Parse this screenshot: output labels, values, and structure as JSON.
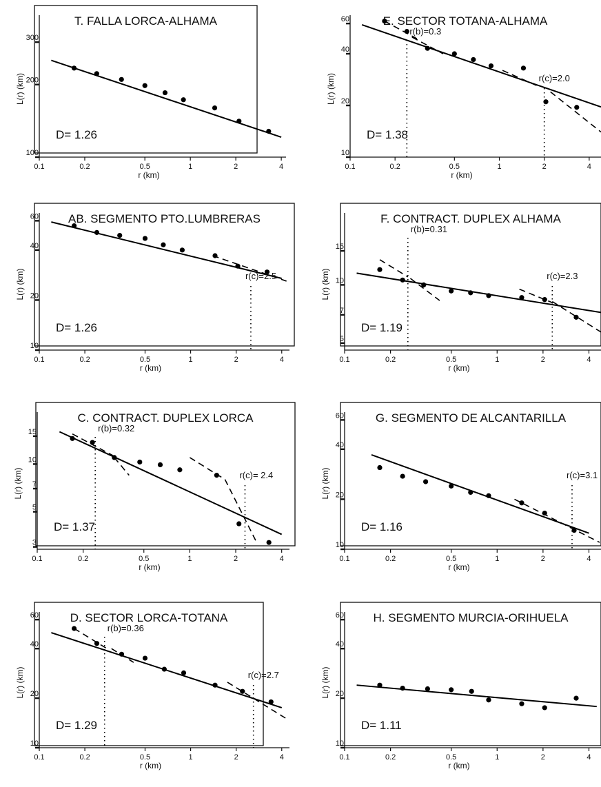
{
  "chart_data": [
    {
      "id": "A",
      "type": "scatter",
      "xscale": "log",
      "yscale": "log",
      "title": "T. FALLA LORCA-ALHAMA",
      "xlabel": "r (km)",
      "ylabel": "L(r) (km)",
      "xlim": [
        0.1,
        4.3
      ],
      "ylim": [
        100,
        420
      ],
      "xticks": [
        "0.1",
        "0.2",
        "0.5",
        "1",
        "2",
        "4"
      ],
      "yticks": [
        "100",
        "200",
        "300"
      ],
      "points": {
        "x": [
          0.17,
          0.24,
          0.35,
          0.5,
          0.68,
          0.9,
          1.45,
          2.1,
          3.3
        ],
        "y": [
          234,
          222,
          210,
          198,
          185,
          173,
          160,
          141,
          128
        ]
      },
      "fit": [
        [
          0.12,
          252
        ],
        [
          4.0,
          121
        ]
      ],
      "fractal_dimension": "D= 1.26",
      "annotations": []
    },
    {
      "id": "E",
      "type": "scatter",
      "xscale": "log",
      "yscale": "log",
      "title": "E. SECTOR TOTANA-ALHAMA",
      "xlabel": "r (km)",
      "ylabel": "L(r) (km)",
      "xlim": [
        0.1,
        4.8
      ],
      "ylim": [
        10,
        75
      ],
      "xticks": [
        "0.1",
        "0.2",
        "0.5",
        "1",
        "2",
        "4"
      ],
      "yticks": [
        "10",
        "20",
        "40",
        "60"
      ],
      "points": {
        "x": [
          0.17,
          0.24,
          0.33,
          0.5,
          0.67,
          0.88,
          1.45,
          2.05,
          3.3
        ],
        "y": [
          62,
          54,
          43,
          40,
          37,
          34,
          33,
          21,
          19.5
        ]
      },
      "fit": [
        [
          0.12,
          59
        ],
        [
          4.8,
          19.6
        ]
      ],
      "break_lines": [
        [
          [
            0.17,
            62
          ],
          [
            0.28,
            49
          ]
        ],
        [
          [
            0.26,
            50
          ],
          [
            0.42,
            40
          ]
        ],
        [
          [
            1.05,
            32
          ],
          [
            1.8,
            26
          ]
        ],
        [
          [
            2.2,
            24
          ],
          [
            4.8,
            14
          ]
        ]
      ],
      "fractal_dimension": "D= 1.38",
      "annotations": [
        {
          "text": "r(b)=0.3",
          "x": 0.24
        },
        {
          "text": "r(c)=2.0",
          "x": 2.0
        }
      ]
    },
    {
      "id": "AB",
      "type": "scatter",
      "xscale": "log",
      "yscale": "log",
      "title": "AB. SEGMENTO PTO.LUMBRERAS",
      "xlabel": "r (km)",
      "ylabel": "L(r) (km)",
      "xlim": [
        0.1,
        4.5
      ],
      "ylim": [
        10,
        75
      ],
      "xticks": [
        "0.1",
        "0.2",
        "0.5",
        "1",
        "2",
        "4"
      ],
      "yticks": [
        "10",
        "20",
        "40",
        "60"
      ],
      "points": {
        "x": [
          0.17,
          0.24,
          0.34,
          0.5,
          0.66,
          0.88,
          1.45,
          2.05,
          3.2
        ],
        "y": [
          56,
          51,
          49,
          47,
          43,
          40,
          37,
          32,
          29.5
        ]
      },
      "fit": [
        [
          0.12,
          59
        ],
        [
          4.0,
          27
        ]
      ],
      "break_lines": [
        [
          [
            1.4,
            37
          ],
          [
            4.3,
            26
          ]
        ]
      ],
      "fractal_dimension": "D= 1.26",
      "annotations": [
        {
          "text": "r(c)=2.5",
          "x": 2.5
        }
      ]
    },
    {
      "id": "F",
      "type": "scatter",
      "xscale": "log",
      "yscale": "log",
      "title": "F. CONTRACT. DUPLEX ALHAMA",
      "xlabel": "r (km)",
      "ylabel": "L(r) (km)",
      "xlim": [
        0.1,
        4.8
      ],
      "ylim": [
        4.6,
        26
      ],
      "xticks": [
        "0.1",
        "0.2",
        "0.5",
        "1",
        "2",
        "4"
      ],
      "yticks": [
        "5",
        "7",
        "10",
        "15"
      ],
      "points": {
        "x": [
          0.17,
          0.24,
          0.33,
          0.5,
          0.67,
          0.88,
          1.45,
          2.05,
          3.3
        ],
        "y": [
          12,
          10.6,
          10,
          9.3,
          9.1,
          8.8,
          8.6,
          8.4,
          6.8
        ]
      },
      "fit": [
        [
          0.12,
          11.5
        ],
        [
          4.8,
          7.2
        ]
      ],
      "break_lines": [
        [
          [
            0.17,
            13.5
          ],
          [
            0.26,
            11
          ]
        ],
        [
          [
            0.27,
            10.8
          ],
          [
            0.42,
            8.3
          ]
        ],
        [
          [
            1.4,
            9.5
          ],
          [
            2.3,
            8.1
          ]
        ],
        [
          [
            2.3,
            8.2
          ],
          [
            4.8,
            5.7
          ]
        ]
      ],
      "fractal_dimension": "D= 1.19",
      "annotations": [
        {
          "text": "r(b)=0.31",
          "x": 0.26
        },
        {
          "text": "r(c)=2.3",
          "x": 2.3
        }
      ]
    },
    {
      "id": "C",
      "type": "scatter",
      "xscale": "log",
      "yscale": "log",
      "title": "C. CONTRACT. DUPLEX LORCA",
      "xlabel": "r (km)",
      "ylabel": "L(r) (km)",
      "xlim": [
        0.1,
        4.5
      ],
      "ylim": [
        2.9,
        24
      ],
      "xticks": [
        "0.1",
        "0.2",
        "0.5",
        "1",
        "2",
        "4"
      ],
      "yticks": [
        "3",
        "5",
        "7",
        "10",
        "15"
      ],
      "points": {
        "x": [
          0.17,
          0.23,
          0.32,
          0.47,
          0.64,
          0.86,
          1.5,
          2.1,
          3.3
        ],
        "y": [
          14.5,
          13.7,
          11,
          10.3,
          9.9,
          9.2,
          8.5,
          4.2,
          3.2
        ]
      },
      "fit": [
        [
          0.14,
          16
        ],
        [
          4.0,
          3.6
        ]
      ],
      "break_lines": [
        [
          [
            0.17,
            15.5
          ],
          [
            0.32,
            11.2
          ]
        ],
        [
          [
            0.32,
            11
          ],
          [
            0.4,
            8.5
          ]
        ],
        [
          [
            1.0,
            11
          ],
          [
            1.7,
            8
          ]
        ],
        [
          [
            1.7,
            8
          ],
          [
            2.7,
            3.3
          ]
        ]
      ],
      "fractal_dimension": "D= 1.37",
      "annotations": [
        {
          "text": "r(b)=0.32",
          "x": 0.24
        },
        {
          "text": "r(c)= 2.4",
          "x": 2.3
        }
      ]
    },
    {
      "id": "G",
      "type": "scatter",
      "xscale": "log",
      "yscale": "log",
      "title": "G. SEGMENTO DE ALCANTARILLA",
      "xlabel": "r (km)",
      "ylabel": "L(r) (km)",
      "xlim": [
        0.1,
        4.8
      ],
      "ylim": [
        10,
        75
      ],
      "xticks": [
        "0.1",
        "0.2",
        "0.5",
        "1",
        "2",
        "4"
      ],
      "yticks": [
        "10",
        "20",
        "40",
        "60"
      ],
      "points": {
        "x": [
          0.17,
          0.24,
          0.34,
          0.5,
          0.67,
          0.88,
          1.45,
          2.05,
          3.2
        ],
        "y": [
          31,
          27.5,
          25.5,
          24,
          22,
          21,
          19,
          16.5,
          13
        ]
      },
      "fit": [
        [
          0.15,
          37
        ],
        [
          4.0,
          12.5
        ]
      ],
      "break_lines": [
        [
          [
            1.3,
            20
          ],
          [
            4.7,
            11
          ]
        ]
      ],
      "fractal_dimension": "D= 1.16",
      "annotations": [
        {
          "text": "r(c)=3.1",
          "x": 3.1
        }
      ]
    },
    {
      "id": "D",
      "type": "scatter",
      "xscale": "log",
      "yscale": "log",
      "title": "D. SECTOR LORCA-TOTANA",
      "xlabel": "r (km)",
      "ylabel": "L(r) (km)",
      "xlim": [
        0.1,
        4.5
      ],
      "ylim": [
        10,
        75
      ],
      "xticks": [
        "0.1",
        "0.2",
        "0.5",
        "1",
        "2",
        "4"
      ],
      "yticks": [
        "10",
        "20",
        "40",
        "60"
      ],
      "points": {
        "x": [
          0.17,
          0.24,
          0.35,
          0.5,
          0.67,
          0.9,
          1.45,
          2.2,
          3.4
        ],
        "y": [
          53,
          43,
          37,
          35,
          30,
          28.5,
          24,
          22,
          19
        ]
      },
      "fit": [
        [
          0.12,
          50
        ],
        [
          4.0,
          17.5
        ]
      ],
      "break_lines": [
        [
          [
            0.17,
            53
          ],
          [
            0.28,
            40
          ]
        ],
        [
          [
            0.3,
            40
          ],
          [
            0.42,
            33
          ]
        ],
        [
          [
            1.75,
            25
          ],
          [
            4.3,
            15
          ]
        ]
      ],
      "fractal_dimension": "D= 1.29",
      "annotations": [
        {
          "text": "r(b)=0.36",
          "x": 0.27
        },
        {
          "text": "r(c)=2.7",
          "x": 2.6
        }
      ]
    },
    {
      "id": "H",
      "type": "scatter",
      "xscale": "log",
      "yscale": "log",
      "title": "H. SEGMENTO MURCIA-ORIHUELA",
      "xlabel": "r (km)",
      "ylabel": "L(r) (km)",
      "xlim": [
        0.1,
        4.8
      ],
      "ylim": [
        10,
        75
      ],
      "xticks": [
        "0.1",
        "0.2",
        "0.5",
        "1",
        "2",
        "4"
      ],
      "yticks": [
        "10",
        "20",
        "40",
        "60"
      ],
      "points": {
        "x": [
          0.17,
          0.24,
          0.35,
          0.5,
          0.68,
          0.88,
          1.45,
          2.05,
          3.3
        ],
        "y": [
          24,
          23,
          22.8,
          22.5,
          22,
          19.5,
          18.5,
          17.5,
          20
        ]
      },
      "fit": [
        [
          0.12,
          24
        ],
        [
          4.5,
          17.8
        ]
      ],
      "fractal_dimension": "D= 1.11",
      "annotations": []
    }
  ]
}
